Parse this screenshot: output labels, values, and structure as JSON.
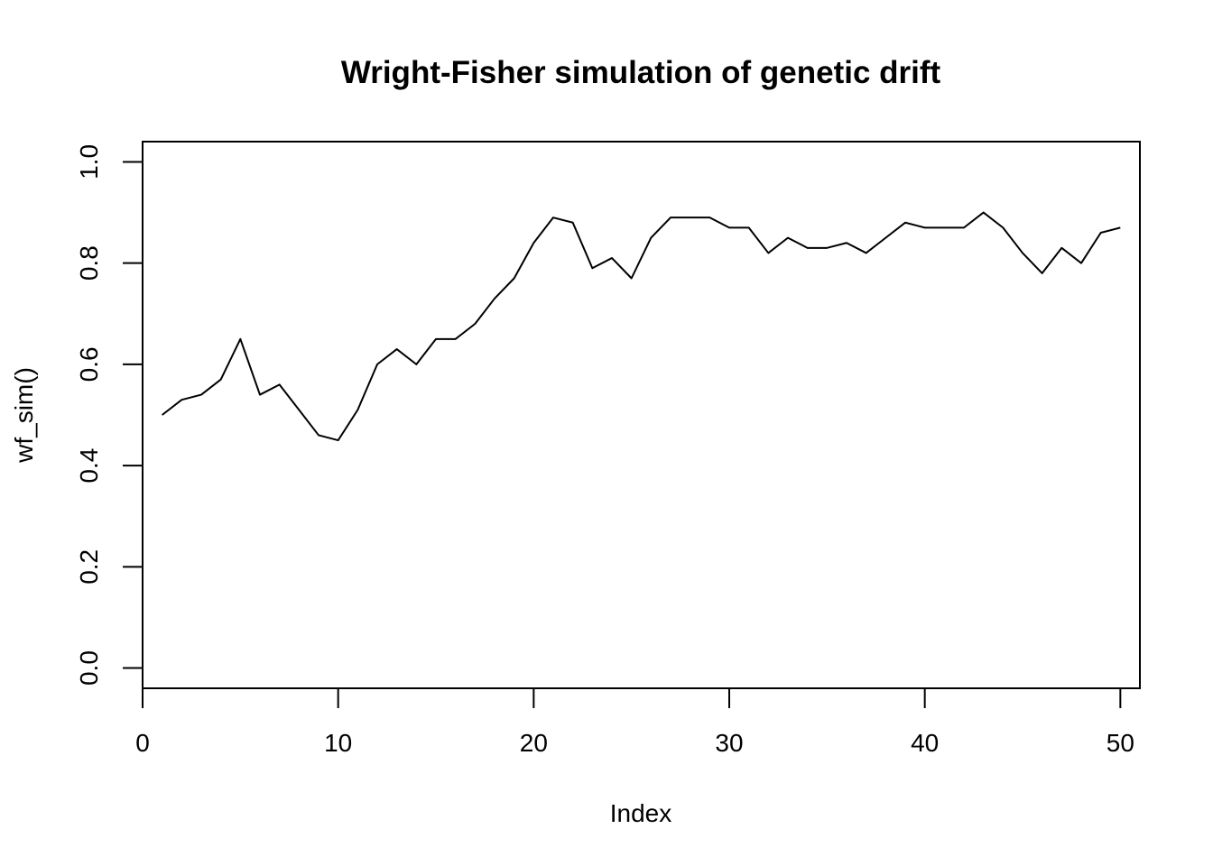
{
  "chart_data": {
    "type": "line",
    "title": "Wright-Fisher simulation of genetic drift",
    "xlabel": "Index",
    "ylabel": "wf_sim()",
    "xlim": [
      0,
      51
    ],
    "ylim": [
      -0.04,
      1.04
    ],
    "xticks": [
      0,
      10,
      20,
      30,
      40,
      50
    ],
    "xtick_labels": [
      "0",
      "10",
      "20",
      "30",
      "40",
      "50"
    ],
    "yticks": [
      0.0,
      0.2,
      0.4,
      0.6,
      0.8,
      1.0
    ],
    "ytick_labels": [
      "0.0",
      "0.2",
      "0.4",
      "0.6",
      "0.8",
      "1.0"
    ],
    "grid": false,
    "legend": "none",
    "line_color": "#000000",
    "series": [
      {
        "x": [
          1,
          2,
          3,
          4,
          5,
          6,
          7,
          8,
          9,
          10,
          11,
          12,
          13,
          14,
          15,
          16,
          17,
          18,
          19,
          20,
          21,
          22,
          23,
          24,
          25,
          26,
          27,
          28,
          29,
          30,
          31,
          32,
          33,
          34,
          35,
          36,
          37,
          38,
          39,
          40,
          41,
          42,
          43,
          44,
          45,
          46,
          47,
          48,
          49,
          50
        ],
        "values": [
          0.5,
          0.53,
          0.54,
          0.57,
          0.65,
          0.54,
          0.56,
          0.51,
          0.46,
          0.45,
          0.51,
          0.6,
          0.63,
          0.6,
          0.65,
          0.65,
          0.68,
          0.73,
          0.77,
          0.84,
          0.89,
          0.88,
          0.79,
          0.81,
          0.77,
          0.85,
          0.89,
          0.89,
          0.89,
          0.87,
          0.87,
          0.82,
          0.85,
          0.83,
          0.83,
          0.84,
          0.82,
          0.85,
          0.88,
          0.87,
          0.87,
          0.87,
          0.9,
          0.87,
          0.82,
          0.78,
          0.83,
          0.8,
          0.86,
          0.87
        ]
      }
    ]
  }
}
